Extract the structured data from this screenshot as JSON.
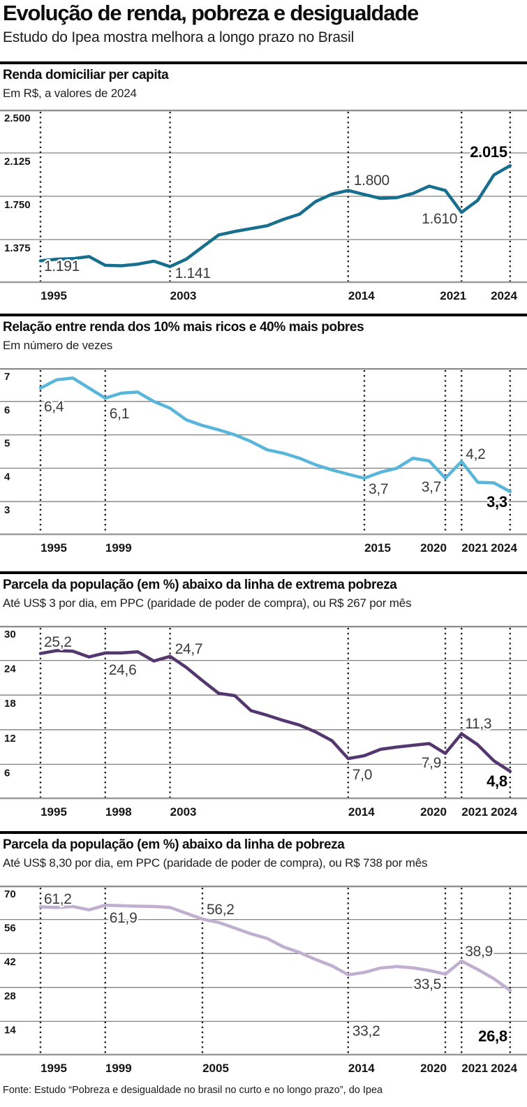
{
  "header": {
    "title": "Evolução de renda, pobreza e desigualdade",
    "subtitle": "Estudo do Ipea mostra melhora a longo prazo no Brasil"
  },
  "footer": {
    "source": "Fonte: Estudo “Pobreza e desigualdade no brasil no curto e no longo prazo”, do Ipea"
  },
  "chart_data": [
    {
      "type": "line",
      "title": "Renda domiciliar per capita",
      "subtitle": "Em R$, a valores de 2024",
      "color": "#176f8d",
      "grid": true,
      "legend_position": "none",
      "ylim": [
        1000,
        2500
      ],
      "yticks": [
        {
          "value": 2500,
          "label": "2.500"
        },
        {
          "value": 2125,
          "label": "2.125"
        },
        {
          "value": 1750,
          "label": "1.750"
        },
        {
          "value": 1375,
          "label": "1.375"
        }
      ],
      "xticks": [
        {
          "year": 1995,
          "label": "1995"
        },
        {
          "year": 2003,
          "label": "2003"
        },
        {
          "year": 2014,
          "label": "2014"
        },
        {
          "year": 2021,
          "label": "2021"
        },
        {
          "year": 2024,
          "label": "2024"
        }
      ],
      "years": [
        1995,
        1996,
        1997,
        1998,
        1999,
        2000,
        2001,
        2002,
        2003,
        2004,
        2005,
        2006,
        2007,
        2008,
        2009,
        2010,
        2011,
        2012,
        2013,
        2014,
        2015,
        2016,
        2017,
        2018,
        2019,
        2020,
        2021,
        2022,
        2023,
        2024
      ],
      "values": [
        1191,
        1205,
        1210,
        1228,
        1152,
        1148,
        1162,
        1188,
        1141,
        1205,
        1310,
        1415,
        1445,
        1470,
        1495,
        1550,
        1595,
        1705,
        1768,
        1800,
        1765,
        1732,
        1738,
        1775,
        1838,
        1800,
        1610,
        1715,
        1935,
        2015
      ],
      "annotations": [
        {
          "text": "1.191",
          "year": 1995,
          "dx": 5,
          "y": 231,
          "anchor": "start",
          "bold": false
        },
        {
          "text": "1.141",
          "year": 2003,
          "dx": 7,
          "y": 241,
          "anchor": "start",
          "bold": false
        },
        {
          "text": "1.800",
          "year": 2014,
          "dx": 8,
          "y": 108,
          "anchor": "start",
          "bold": false
        },
        {
          "text": "1.610",
          "year": 2021,
          "dx": -6,
          "y": 163,
          "anchor": "end",
          "bold": false
        },
        {
          "text": "2.015",
          "year": 2024,
          "dx": -4,
          "y": 68,
          "anchor": "end",
          "bold": true
        }
      ]
    },
    {
      "type": "line",
      "title": "Relação entre renda dos 10% mais ricos e 40% mais pobres",
      "subtitle": "Em número de vezes",
      "color": "#58b6da",
      "grid": true,
      "legend_position": "none",
      "ylim": [
        2,
        7
      ],
      "yticks": [
        {
          "value": 7,
          "label": "7"
        },
        {
          "value": 6,
          "label": "6"
        },
        {
          "value": 5,
          "label": "5"
        },
        {
          "value": 4,
          "label": "4"
        },
        {
          "value": 3,
          "label": "3"
        }
      ],
      "xticks": [
        {
          "year": 1995,
          "label": "1995"
        },
        {
          "year": 1999,
          "label": "1999"
        },
        {
          "year": 2015,
          "label": "2015"
        },
        {
          "year": 2020,
          "label": "2020"
        },
        {
          "year": 2021,
          "label": "2021"
        },
        {
          "year": 2024,
          "label": "2024"
        }
      ],
      "years": [
        1995,
        1996,
        1997,
        1998,
        1999,
        2000,
        2001,
        2002,
        2003,
        2004,
        2005,
        2006,
        2007,
        2008,
        2009,
        2010,
        2011,
        2012,
        2013,
        2014,
        2015,
        2016,
        2017,
        2018,
        2019,
        2020,
        2021,
        2022,
        2023,
        2024
      ],
      "values": [
        6.4,
        6.65,
        6.7,
        6.4,
        6.1,
        6.25,
        6.28,
        6.0,
        5.8,
        5.45,
        5.28,
        5.15,
        5.0,
        4.8,
        4.55,
        4.45,
        4.3,
        4.1,
        3.95,
        3.82,
        3.7,
        3.88,
        4.0,
        4.3,
        4.22,
        3.7,
        4.2,
        3.58,
        3.56,
        3.3
      ],
      "annotations": [
        {
          "text": "6,4",
          "year": 1995,
          "dx": 5,
          "y": 62,
          "anchor": "start",
          "bold": false
        },
        {
          "text": "6,1",
          "year": 1999,
          "dx": 6,
          "y": 72,
          "anchor": "start",
          "bold": false
        },
        {
          "text": "3,7",
          "year": 2015,
          "dx": 6,
          "y": 180,
          "anchor": "start",
          "bold": false
        },
        {
          "text": "3,7",
          "year": 2020,
          "dx": -6,
          "y": 177,
          "anchor": "end",
          "bold": false
        },
        {
          "text": "4,2",
          "year": 2021,
          "dx": 6,
          "y": 130,
          "anchor": "start",
          "bold": false
        },
        {
          "text": "3,3",
          "year": 2024,
          "dx": -4,
          "y": 199,
          "anchor": "end",
          "bold": true
        }
      ]
    },
    {
      "type": "line",
      "title": "Parcela da população (em %) abaixo da linha de extrema pobreza",
      "subtitle": "Até US$ 3 por dia, em PPC (paridade de poder de compra), ou R$ 267 por mês",
      "color": "#55376f",
      "grid": true,
      "legend_position": "none",
      "ylim": [
        0,
        30
      ],
      "yticks": [
        {
          "value": 30,
          "label": "30"
        },
        {
          "value": 24,
          "label": "24"
        },
        {
          "value": 18,
          "label": "18"
        },
        {
          "value": 12,
          "label": "12"
        },
        {
          "value": 6,
          "label": "6"
        }
      ],
      "xticks": [
        {
          "year": 1995,
          "label": "1995"
        },
        {
          "year": 1998,
          "label": "1998",
          "pos_year": 1999
        },
        {
          "year": 2003,
          "label": "2003"
        },
        {
          "year": 2014,
          "label": "2014"
        },
        {
          "year": 2020,
          "label": "2020"
        },
        {
          "year": 2021,
          "label": "2021"
        },
        {
          "year": 2024,
          "label": "2024"
        }
      ],
      "years": [
        1995,
        1996,
        1997,
        1998,
        1999,
        2000,
        2001,
        2002,
        2003,
        2004,
        2005,
        2006,
        2007,
        2008,
        2009,
        2010,
        2011,
        2012,
        2013,
        2014,
        2015,
        2016,
        2017,
        2018,
        2019,
        2020,
        2021,
        2022,
        2023,
        2024
      ],
      "values": [
        25.2,
        25.7,
        25.6,
        24.6,
        25.3,
        25.3,
        25.5,
        23.9,
        24.7,
        22.8,
        20.5,
        18.3,
        17.9,
        15.3,
        14.5,
        13.6,
        12.8,
        11.6,
        10.1,
        7.0,
        7.5,
        8.6,
        9.0,
        9.3,
        9.6,
        7.9,
        11.3,
        9.4,
        6.6,
        4.8
      ],
      "annotations": [
        {
          "text": "25,2",
          "year": 1995,
          "dx": 5,
          "y": 30,
          "anchor": "start",
          "bold": false
        },
        {
          "text": "24,6",
          "year": 1998,
          "pos_year": 1999,
          "dx": 5,
          "y": 70,
          "anchor": "start",
          "bold": false
        },
        {
          "text": "24,7",
          "year": 2003,
          "dx": 7,
          "y": 40,
          "anchor": "start",
          "bold": false
        },
        {
          "text": "7,0",
          "year": 2014,
          "dx": 6,
          "y": 220,
          "anchor": "start",
          "bold": false
        },
        {
          "text": "7,9",
          "year": 2020,
          "dx": -6,
          "y": 203,
          "anchor": "end",
          "bold": false
        },
        {
          "text": "11,3",
          "year": 2021,
          "dx": 5,
          "y": 147,
          "anchor": "start",
          "bold": false
        },
        {
          "text": "4,8",
          "year": 2024,
          "dx": -4,
          "y": 230,
          "anchor": "end",
          "bold": true
        }
      ]
    },
    {
      "type": "line",
      "title": "Parcela da população (em %) abaixo da linha de pobreza",
      "subtitle": "Até US$ 8,30 por dia, em PPC (paridade de poder de compra), ou R$ 738 por mês",
      "color": "#c1afd1",
      "grid": true,
      "legend_position": "none",
      "ylim": [
        0,
        70
      ],
      "yticks": [
        {
          "value": 70,
          "label": "70"
        },
        {
          "value": 56,
          "label": "56"
        },
        {
          "value": 42,
          "label": "42"
        },
        {
          "value": 28,
          "label": "28"
        },
        {
          "value": 14,
          "label": "14"
        }
      ],
      "xticks": [
        {
          "year": 1995,
          "label": "1995"
        },
        {
          "year": 1999,
          "label": "1999"
        },
        {
          "year": 2005,
          "label": "2005"
        },
        {
          "year": 2014,
          "label": "2014"
        },
        {
          "year": 2020,
          "label": "2020"
        },
        {
          "year": 2021,
          "label": "2021"
        },
        {
          "year": 2024,
          "label": "2024"
        }
      ],
      "years": [
        1995,
        1996,
        1997,
        1998,
        1999,
        2000,
        2001,
        2002,
        2003,
        2004,
        2005,
        2006,
        2007,
        2008,
        2009,
        2010,
        2011,
        2012,
        2013,
        2014,
        2015,
        2016,
        2017,
        2018,
        2019,
        2020,
        2021,
        2022,
        2023,
        2024
      ],
      "values": [
        61.2,
        61.0,
        61.4,
        60.0,
        61.9,
        61.7,
        61.5,
        61.4,
        61.0,
        58.6,
        56.2,
        54.8,
        52.5,
        50.1,
        48.2,
        44.7,
        42.4,
        39.5,
        36.9,
        33.2,
        34.2,
        36.0,
        36.6,
        36.1,
        35.0,
        33.5,
        38.9,
        35.4,
        31.6,
        26.8
      ],
      "annotations": [
        {
          "text": "61,2",
          "year": 1995,
          "dx": 5,
          "y": 26,
          "anchor": "start",
          "bold": false
        },
        {
          "text": "61,9",
          "year": 1999,
          "dx": 6,
          "y": 53,
          "anchor": "start",
          "bold": false
        },
        {
          "text": "56,2",
          "year": 2005,
          "dx": 6,
          "y": 41,
          "anchor": "start",
          "bold": false
        },
        {
          "text": "33,2",
          "year": 2014,
          "dx": 6,
          "y": 215,
          "anchor": "start",
          "bold": false
        },
        {
          "text": "33,5",
          "year": 2020,
          "dx": -6,
          "y": 148,
          "anchor": "end",
          "bold": false
        },
        {
          "text": "38,9",
          "year": 2021,
          "dx": 5,
          "y": 101,
          "anchor": "start",
          "bold": false
        },
        {
          "text": "26,8",
          "year": 2024,
          "dx": -4,
          "y": 223,
          "anchor": "end",
          "bold": true
        }
      ]
    }
  ]
}
